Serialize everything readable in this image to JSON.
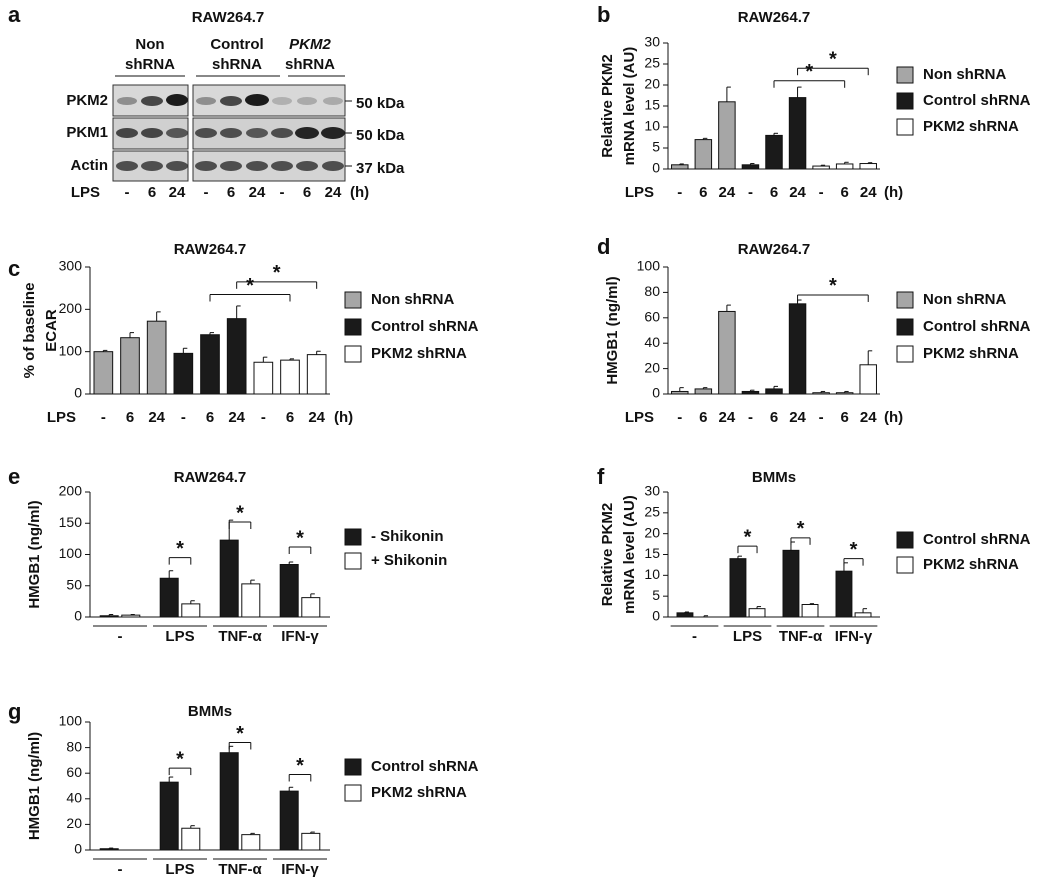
{
  "blot": {
    "panel": "a",
    "title": "RAW264.7",
    "groups": [
      [
        "Non",
        "shRNA"
      ],
      [
        "Control",
        "shRNA"
      ],
      [
        "PKM2",
        "shRNA"
      ]
    ],
    "rows": [
      "PKM2",
      "PKM1",
      "Actin"
    ],
    "sizes": [
      "50 kDa",
      "50 kDa",
      "37 kDa"
    ],
    "lanes": [
      "-",
      "6",
      "24",
      "-",
      "6",
      "24",
      "-",
      "6",
      "24"
    ],
    "lane_prefix": "LPS",
    "lane_suffix": "(h)"
  },
  "chart_data": [
    {
      "type": "bar",
      "layout": "sequential",
      "panel": "b",
      "title": "RAW264.7",
      "ylabel": [
        "Relative PKM2",
        "mRNA level (AU)"
      ],
      "categories": [
        "-",
        "6",
        "24",
        "-",
        "6",
        "24",
        "-",
        "6",
        "24"
      ],
      "x_prefix": "LPS",
      "x_suffix": "(h)",
      "ylim": [
        0,
        30
      ],
      "yticks": [
        0,
        5,
        10,
        15,
        20,
        25,
        30
      ],
      "series": [
        {
          "name": "Non shRNA",
          "color": "#a6a6a6",
          "values": [
            1,
            7,
            16,
            null,
            null,
            null,
            null,
            null,
            null
          ],
          "errors": [
            0.2,
            0.3,
            3.5,
            null,
            null,
            null,
            null,
            null,
            null
          ]
        },
        {
          "name": "Control shRNA",
          "color": "#1a1a1a",
          "values": [
            null,
            null,
            null,
            1,
            8,
            17,
            null,
            null,
            null
          ],
          "errors": [
            null,
            null,
            null,
            0.3,
            0.5,
            2.5,
            null,
            null,
            null
          ]
        },
        {
          "name": "PKM2 shRNA",
          "color": "#ffffff",
          "values": [
            null,
            null,
            null,
            null,
            null,
            null,
            0.7,
            1.2,
            1.3
          ],
          "errors": [
            null,
            null,
            null,
            null,
            null,
            null,
            0.2,
            0.4,
            0.2
          ]
        }
      ],
      "brackets": [
        {
          "label": "*",
          "from": 4,
          "to": 7,
          "y": 21
        },
        {
          "label": "*",
          "from": 5,
          "to": 8,
          "y": 24
        }
      ]
    },
    {
      "type": "bar",
      "layout": "sequential",
      "panel": "c",
      "title": "RAW264.7",
      "ylabel": [
        "% of baseline",
        "ECAR"
      ],
      "categories": [
        "-",
        "6",
        "24",
        "-",
        "6",
        "24",
        "-",
        "6",
        "24"
      ],
      "x_prefix": "LPS",
      "x_suffix": "(h)",
      "ylim": [
        0,
        300
      ],
      "yticks": [
        0,
        100,
        200,
        300
      ],
      "series": [
        {
          "name": "Non shRNA",
          "color": "#a6a6a6",
          "values": [
            100,
            133,
            172,
            null,
            null,
            null,
            null,
            null,
            null
          ],
          "errors": [
            3,
            12,
            22,
            null,
            null,
            null,
            null,
            null,
            null
          ]
        },
        {
          "name": "Control shRNA",
          "color": "#1a1a1a",
          "values": [
            null,
            null,
            null,
            96,
            140,
            178,
            null,
            null,
            null
          ],
          "errors": [
            null,
            null,
            null,
            12,
            5,
            30,
            null,
            null,
            null
          ]
        },
        {
          "name": "PKM2 shRNA",
          "color": "#ffffff",
          "values": [
            null,
            null,
            null,
            null,
            null,
            null,
            75,
            80,
            93
          ],
          "errors": [
            null,
            null,
            null,
            null,
            null,
            null,
            12,
            3,
            8
          ]
        }
      ],
      "brackets": [
        {
          "label": "*",
          "from": 4,
          "to": 7,
          "y": 235
        },
        {
          "label": "*",
          "from": 5,
          "to": 8,
          "y": 265
        }
      ]
    },
    {
      "type": "bar",
      "layout": "sequential",
      "panel": "d",
      "title": "RAW264.7",
      "ylabel": [
        "HMGB1 (ng/ml)"
      ],
      "categories": [
        "-",
        "6",
        "24",
        "-",
        "6",
        "24",
        "-",
        "6",
        "24"
      ],
      "x_prefix": "LPS",
      "x_suffix": "(h)",
      "ylim": [
        0,
        100
      ],
      "yticks": [
        0,
        20,
        40,
        60,
        80,
        100
      ],
      "series": [
        {
          "name": "Non shRNA",
          "color": "#a6a6a6",
          "values": [
            2,
            4,
            65,
            null,
            null,
            null,
            null,
            null,
            null
          ],
          "errors": [
            3,
            1,
            5,
            null,
            null,
            null,
            null,
            null,
            null
          ]
        },
        {
          "name": "Control shRNA",
          "color": "#1a1a1a",
          "values": [
            null,
            null,
            null,
            2,
            4,
            71,
            null,
            null,
            null
          ],
          "errors": [
            null,
            null,
            null,
            1,
            2,
            3,
            null,
            null,
            null
          ]
        },
        {
          "name": "PKM2 shRNA",
          "color": "#ffffff",
          "values": [
            null,
            null,
            null,
            null,
            null,
            null,
            1,
            1,
            23
          ],
          "errors": [
            null,
            null,
            null,
            null,
            null,
            null,
            1,
            1,
            11
          ]
        }
      ],
      "brackets": [
        {
          "label": "*",
          "from": 5,
          "to": 8,
          "y": 78
        }
      ]
    },
    {
      "type": "bar",
      "layout": "grouped",
      "panel": "e",
      "title": "RAW264.7",
      "ylabel": [
        "HMGB1 (ng/ml)"
      ],
      "categories": [
        "-",
        "LPS",
        "TNF-α",
        "IFN-γ"
      ],
      "ylim": [
        0,
        200
      ],
      "yticks": [
        0,
        50,
        100,
        150,
        200
      ],
      "series": [
        {
          "name": "- Shikonin",
          "color": "#1a1a1a",
          "values": [
            2,
            62,
            123,
            84
          ],
          "errors": [
            2,
            12,
            32,
            4
          ]
        },
        {
          "name": "+ Shikonin",
          "color": "#ffffff",
          "values": [
            3,
            21,
            53,
            31
          ],
          "errors": [
            1,
            5,
            6,
            6
          ]
        }
      ],
      "brackets": [
        {
          "label": "*",
          "category": 1,
          "y": 95
        },
        {
          "label": "*",
          "category": 2,
          "y": 152
        },
        {
          "label": "*",
          "category": 3,
          "y": 112
        }
      ]
    },
    {
      "type": "bar",
      "layout": "grouped",
      "panel": "f",
      "title": "BMMs",
      "ylabel": [
        "Relative PKM2",
        "mRNA level (AU)"
      ],
      "categories": [
        "-",
        "LPS",
        "TNF-α",
        "IFN-γ"
      ],
      "ylim": [
        0,
        30
      ],
      "yticks": [
        0,
        5,
        10,
        15,
        20,
        25,
        30
      ],
      "series": [
        {
          "name": "Control shRNA",
          "color": "#1a1a1a",
          "values": [
            1,
            14,
            16,
            11
          ],
          "errors": [
            0.2,
            0.6,
            2,
            2
          ]
        },
        {
          "name": "PKM2 shRNA",
          "color": "#ffffff",
          "values": [
            0,
            2,
            3,
            1
          ],
          "errors": [
            0.3,
            0.5,
            0.2,
            1
          ]
        }
      ],
      "brackets": [
        {
          "label": "*",
          "category": 1,
          "y": 17
        },
        {
          "label": "*",
          "category": 2,
          "y": 19
        },
        {
          "label": "*",
          "category": 3,
          "y": 14
        }
      ]
    },
    {
      "type": "bar",
      "layout": "grouped",
      "panel": "g",
      "title": "BMMs",
      "ylabel": [
        "HMGB1 (ng/ml)"
      ],
      "categories": [
        "-",
        "LPS",
        "TNF-α",
        "IFN-γ"
      ],
      "ylim": [
        0,
        100
      ],
      "yticks": [
        0,
        20,
        40,
        60,
        80,
        100
      ],
      "series": [
        {
          "name": "Control shRNA",
          "color": "#1a1a1a",
          "values": [
            1,
            53,
            76,
            46
          ],
          "errors": [
            0.5,
            4,
            5,
            3
          ]
        },
        {
          "name": "PKM2 shRNA",
          "color": "#ffffff",
          "values": [
            0,
            17,
            12,
            13
          ],
          "errors": [
            0,
            2,
            1,
            1
          ]
        }
      ],
      "brackets": [
        {
          "label": "*",
          "category": 1,
          "y": 64
        },
        {
          "label": "*",
          "category": 2,
          "y": 84
        },
        {
          "label": "*",
          "category": 3,
          "y": 59
        }
      ]
    }
  ]
}
